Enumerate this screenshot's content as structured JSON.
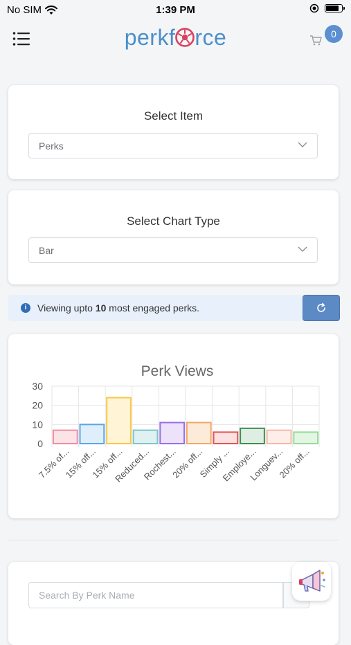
{
  "status_bar": {
    "carrier": "No SIM",
    "time": "1:39 PM",
    "battery_level": 0.85
  },
  "header": {
    "logo_text_before": "perkf",
    "logo_text_after": "rce",
    "cart_count": "0",
    "brand_color": "#4a8fc9"
  },
  "select_item": {
    "title": "Select Item",
    "value": "Perks"
  },
  "select_chart": {
    "title": "Select Chart Type",
    "value": "Bar"
  },
  "info": {
    "prefix": "Viewing upto ",
    "count": "10",
    "suffix": " most engaged perks."
  },
  "chart_data": {
    "type": "bar",
    "title": "Perk Views",
    "categories": [
      "7.5% of...",
      "15% off...",
      "15% off...",
      "Reduced...",
      "Rochest...",
      "20% off...",
      "Simply ...",
      "Employe...",
      "Longuev...",
      "20% off..."
    ],
    "values": [
      7,
      10,
      24,
      7,
      11,
      11,
      6,
      8,
      7,
      6
    ],
    "ylim": [
      0,
      30
    ],
    "yticks": [
      0,
      10,
      20,
      30
    ],
    "grid": true,
    "colors": [
      {
        "fill": "#fbe3e7",
        "stroke": "#f08ca0"
      },
      {
        "fill": "#dfeefb",
        "stroke": "#5aa6e6"
      },
      {
        "fill": "#fff4d6",
        "stroke": "#f7c948"
      },
      {
        "fill": "#dff1f1",
        "stroke": "#7cc6c6"
      },
      {
        "fill": "#ece3fb",
        "stroke": "#9b6ee8"
      },
      {
        "fill": "#fdebd9",
        "stroke": "#f4a868"
      },
      {
        "fill": "#fde0e0",
        "stroke": "#e05656"
      },
      {
        "fill": "#dfeee3",
        "stroke": "#3d8f4e"
      },
      {
        "fill": "#fdeeea",
        "stroke": "#f6b9a9"
      },
      {
        "fill": "#e2f6e3",
        "stroke": "#95dc97"
      }
    ]
  },
  "search": {
    "placeholder": "Search By Perk Name"
  },
  "icons": {
    "menu": "hamburger-icon",
    "cart": "cart-icon",
    "info": "info-icon",
    "refresh": "refresh-icon",
    "dropdown": "chevron-down-icon",
    "feedback": "megaphone-icon"
  }
}
